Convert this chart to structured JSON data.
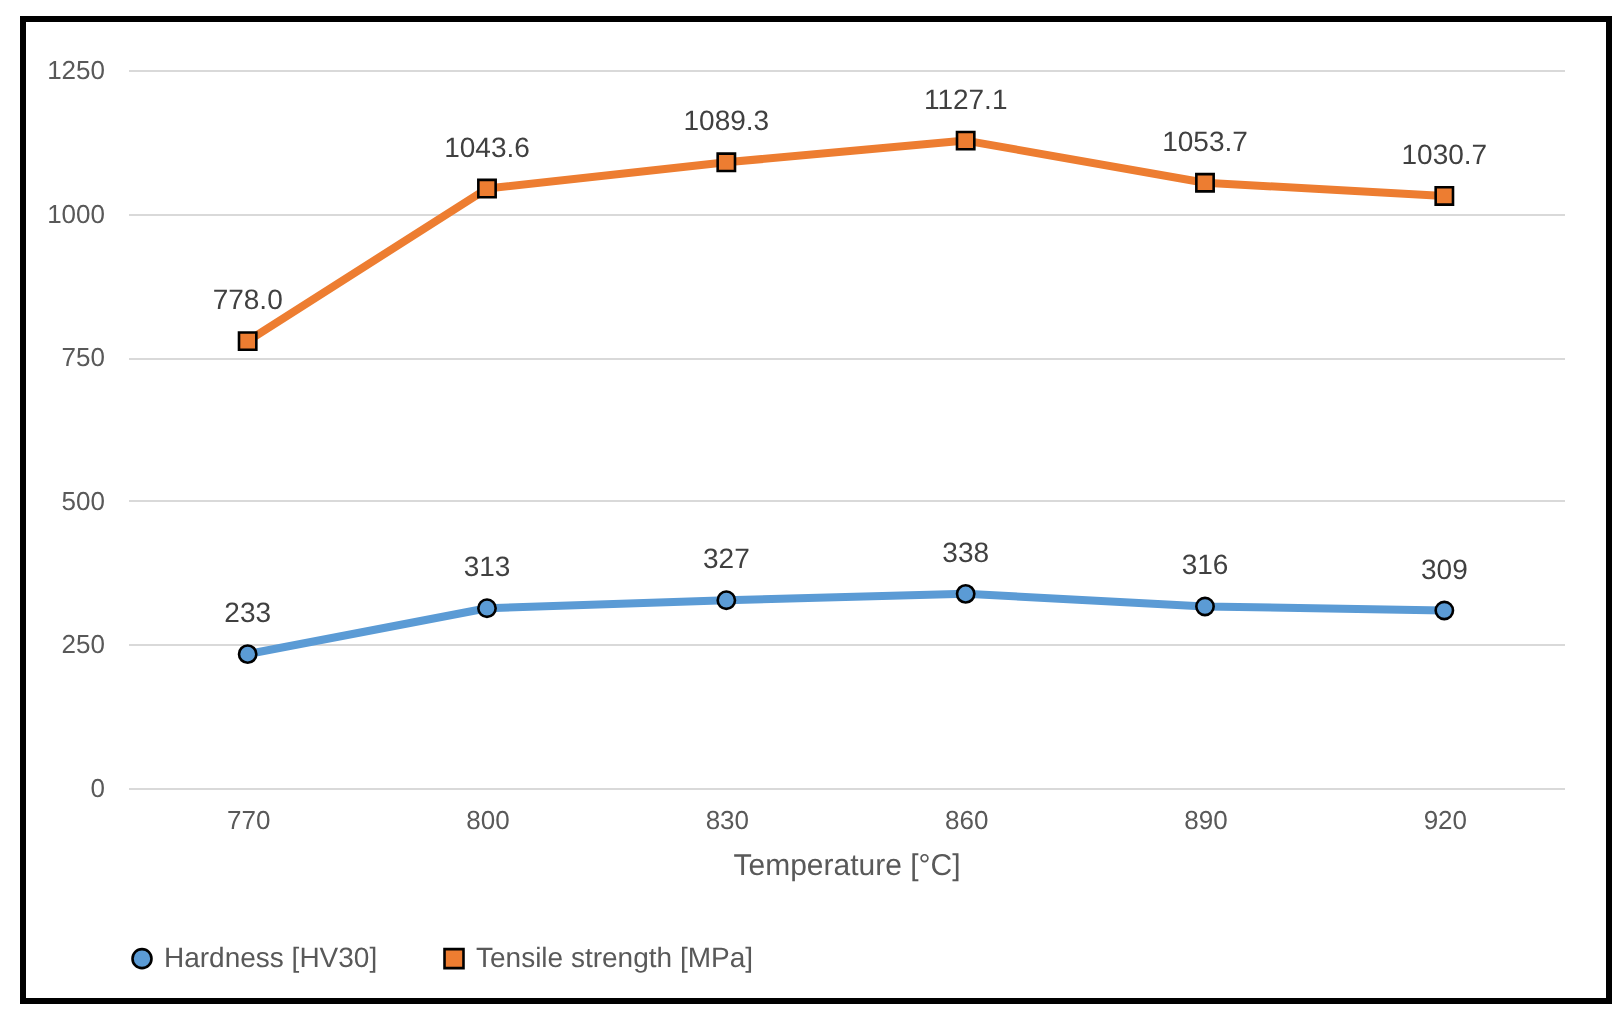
{
  "chart_data": {
    "type": "line",
    "xlabel": "Temperature [°C]",
    "categories": [
      "770",
      "800",
      "830",
      "860",
      "890",
      "920"
    ],
    "series": [
      {
        "name": "Hardness [HV30]",
        "color": "#5b9bd5",
        "marker": "circle",
        "values": [
          233,
          313,
          327,
          338,
          316,
          309
        ],
        "value_labels": [
          "233",
          "313",
          "327",
          "338",
          "316",
          "309"
        ]
      },
      {
        "name": "Tensile strength [MPa]",
        "color": "#ed7d31",
        "marker": "square",
        "values": [
          778.0,
          1043.6,
          1089.3,
          1127.1,
          1053.7,
          1030.7
        ],
        "value_labels": [
          "778.0",
          "1043.6",
          "1089.3",
          "1127.1",
          "1053.7",
          "1030.7"
        ]
      }
    ],
    "ylim": [
      0,
      1250
    ],
    "yticks": [
      0,
      250,
      500,
      750,
      1000,
      1250
    ],
    "grid": "y",
    "legend": "bottom",
    "line_style": "solid"
  }
}
